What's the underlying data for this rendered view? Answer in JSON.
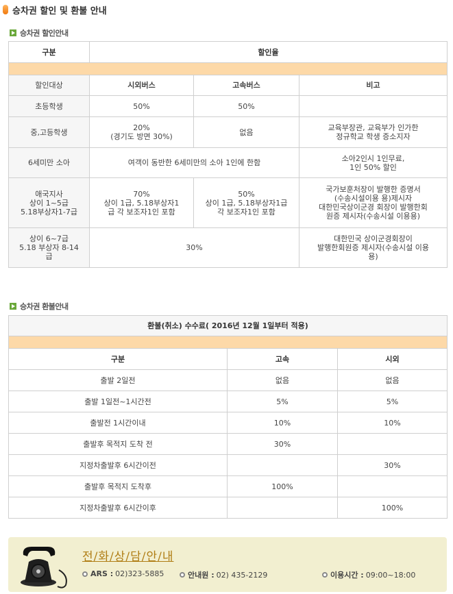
{
  "title": "승차권 할인 및 환불 안내",
  "discount": {
    "section_label": "승차권 할인안내",
    "header": {
      "category": "구분",
      "rate": "할인율"
    },
    "subheader": {
      "target": "할인대상",
      "intercity": "시외버스",
      "express": "고속버스",
      "note": "비고"
    },
    "rows": {
      "elementary": {
        "label": "초등학생",
        "intercity": "50%",
        "express": "50%",
        "note": ""
      },
      "middle_high": {
        "label": "중,고등학생",
        "intercity_1": "20%",
        "intercity_2": "(경기도 방면 30%)",
        "express": "없음",
        "note_1": "교육부장관, 교육부가 인가한",
        "note_2": "정규학교 학생 증소지자"
      },
      "under6": {
        "label": "6세미만 소아",
        "combined": "여객이 동반한 6세미만의 소아 1인에 한함",
        "note_1": "소아2인시 1인무료,",
        "note_2": "1인 50% 할인"
      },
      "veterans": {
        "label_1": "애국지사",
        "label_2": "상이 1~5급",
        "label_3": "5.18부상자1-7급",
        "intercity_1": "70%",
        "intercity_2": "상이 1급, 5.18부상자1",
        "intercity_3": "급 각 보조자1인 포함",
        "express_1": "50%",
        "express_2": "상이 1급, 5.18부상자1급",
        "express_3": "각 보조자1인 포함",
        "note_1": "국가보훈처장이 발행한 증명서",
        "note_2": "(수송시설이용 용)제시자",
        "note_3": "대한민국상이군경 회장이 발행한회",
        "note_4": "원증 제시자(수송시설 이용용)"
      },
      "disabled": {
        "label_1": "상이 6~7급",
        "label_2": "5.18 부상자 8-14",
        "label_3": "급",
        "combined": "30%",
        "note_1": "대한민국 상이군경회장이",
        "note_2": "발행한회원증 제시자(수송시설 이용",
        "note_3": "용)"
      }
    }
  },
  "refund": {
    "section_label": "승차권 환불안내",
    "title": "환불(취소) 수수료( 2016년 12월 1일부터 적용)",
    "columns": [
      "구분",
      "고속",
      "시외"
    ],
    "rows": [
      [
        "출발 2일전",
        "없음",
        "없음"
      ],
      [
        "출발 1일전~1시간전",
        "5%",
        "5%"
      ],
      [
        "출발전 1시간이내",
        "10%",
        "10%"
      ],
      [
        "출발후 목적지 도착 전",
        "30%",
        ""
      ],
      [
        "지정차출발후 6시간이전",
        "",
        "30%"
      ],
      [
        "출발후 목적지 도착후",
        "100%",
        ""
      ],
      [
        "지정차출발후 6시간이후",
        "",
        "100%"
      ]
    ]
  },
  "contact": {
    "title": "전/화/상/담/안/내",
    "ars_label": "ARS :",
    "ars_value": "02)323-5885",
    "info_label": "안내원 :",
    "info_value": "02) 435-2129",
    "hours_label": "이용시간 :",
    "hours_value": "09:00~18:00",
    "icon": "telephone-icon"
  },
  "colors": {
    "orange_band": "#fdd9a8",
    "accent": "#f07a10",
    "section_icon": "#6aa83a",
    "contact_bg": "#f2efd0"
  }
}
